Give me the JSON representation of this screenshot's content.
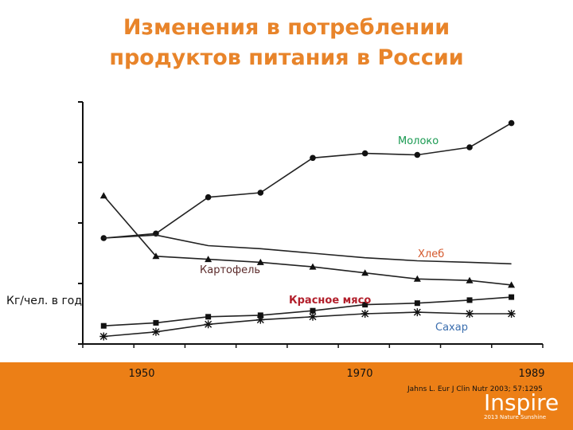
{
  "slide": {
    "title_line1": "Изменения в потреблении",
    "title_line2": "продуктов питания в России",
    "title_color": "#e8842a",
    "citation": "Jahns L. Eur J Clin Nutr 2003; 57:1295",
    "footer_color": "#ec7f16",
    "brand_name": "Inspire",
    "brand_tagline": "2013 Nature Sunshine"
  },
  "chart_data": {
    "type": "line",
    "title": "",
    "xlabel": "",
    "ylabel": "Кг/чел. в год",
    "x": [
      1950,
      1955,
      1960,
      1965,
      1970,
      1975,
      1980,
      1985,
      1989
    ],
    "x_tick_labels": [
      "1950",
      "1970",
      "1989"
    ],
    "xlim": [
      1948,
      1992
    ],
    "ylim": [
      0,
      160
    ],
    "grid": false,
    "legend": "inline labels",
    "series": [
      {
        "name": "Молоко",
        "color": "#1a9a52",
        "marker": "diamond",
        "x": [
          1950,
          1955,
          1960,
          1965,
          1970,
          1975,
          1980,
          1985,
          1989
        ],
        "values": [
          70,
          73,
          97,
          100,
          123,
          126,
          125,
          130,
          146
        ]
      },
      {
        "name": "Хлеб",
        "color": "#d4572b",
        "marker": "none",
        "x": [
          1950,
          1955,
          1960,
          1965,
          1970,
          1975,
          1980,
          1985,
          1989
        ],
        "values": [
          70,
          72,
          65,
          63,
          60,
          57,
          55,
          54,
          53
        ]
      },
      {
        "name": "Картофель",
        "color": "#5b2a2a",
        "marker": "triangle",
        "x": [
          1950,
          1955,
          1960,
          1965,
          1970,
          1975,
          1980,
          1985,
          1989
        ],
        "values": [
          98,
          58,
          56,
          54,
          51,
          47,
          43,
          42,
          39
        ]
      },
      {
        "name": "Красное мясо",
        "color": "#b21f2b",
        "marker": "square",
        "x": [
          1950,
          1955,
          1960,
          1965,
          1970,
          1975,
          1980,
          1985,
          1989
        ],
        "values": [
          12,
          14,
          18,
          19,
          22,
          26,
          27,
          29,
          31
        ]
      },
      {
        "name": "Сахар",
        "color": "#3b6eae",
        "marker": "star",
        "x": [
          1950,
          1955,
          1960,
          1965,
          1970,
          1975,
          1980,
          1985,
          1989
        ],
        "values": [
          5,
          8,
          13,
          16,
          18,
          20,
          21,
          20,
          20
        ]
      }
    ]
  }
}
